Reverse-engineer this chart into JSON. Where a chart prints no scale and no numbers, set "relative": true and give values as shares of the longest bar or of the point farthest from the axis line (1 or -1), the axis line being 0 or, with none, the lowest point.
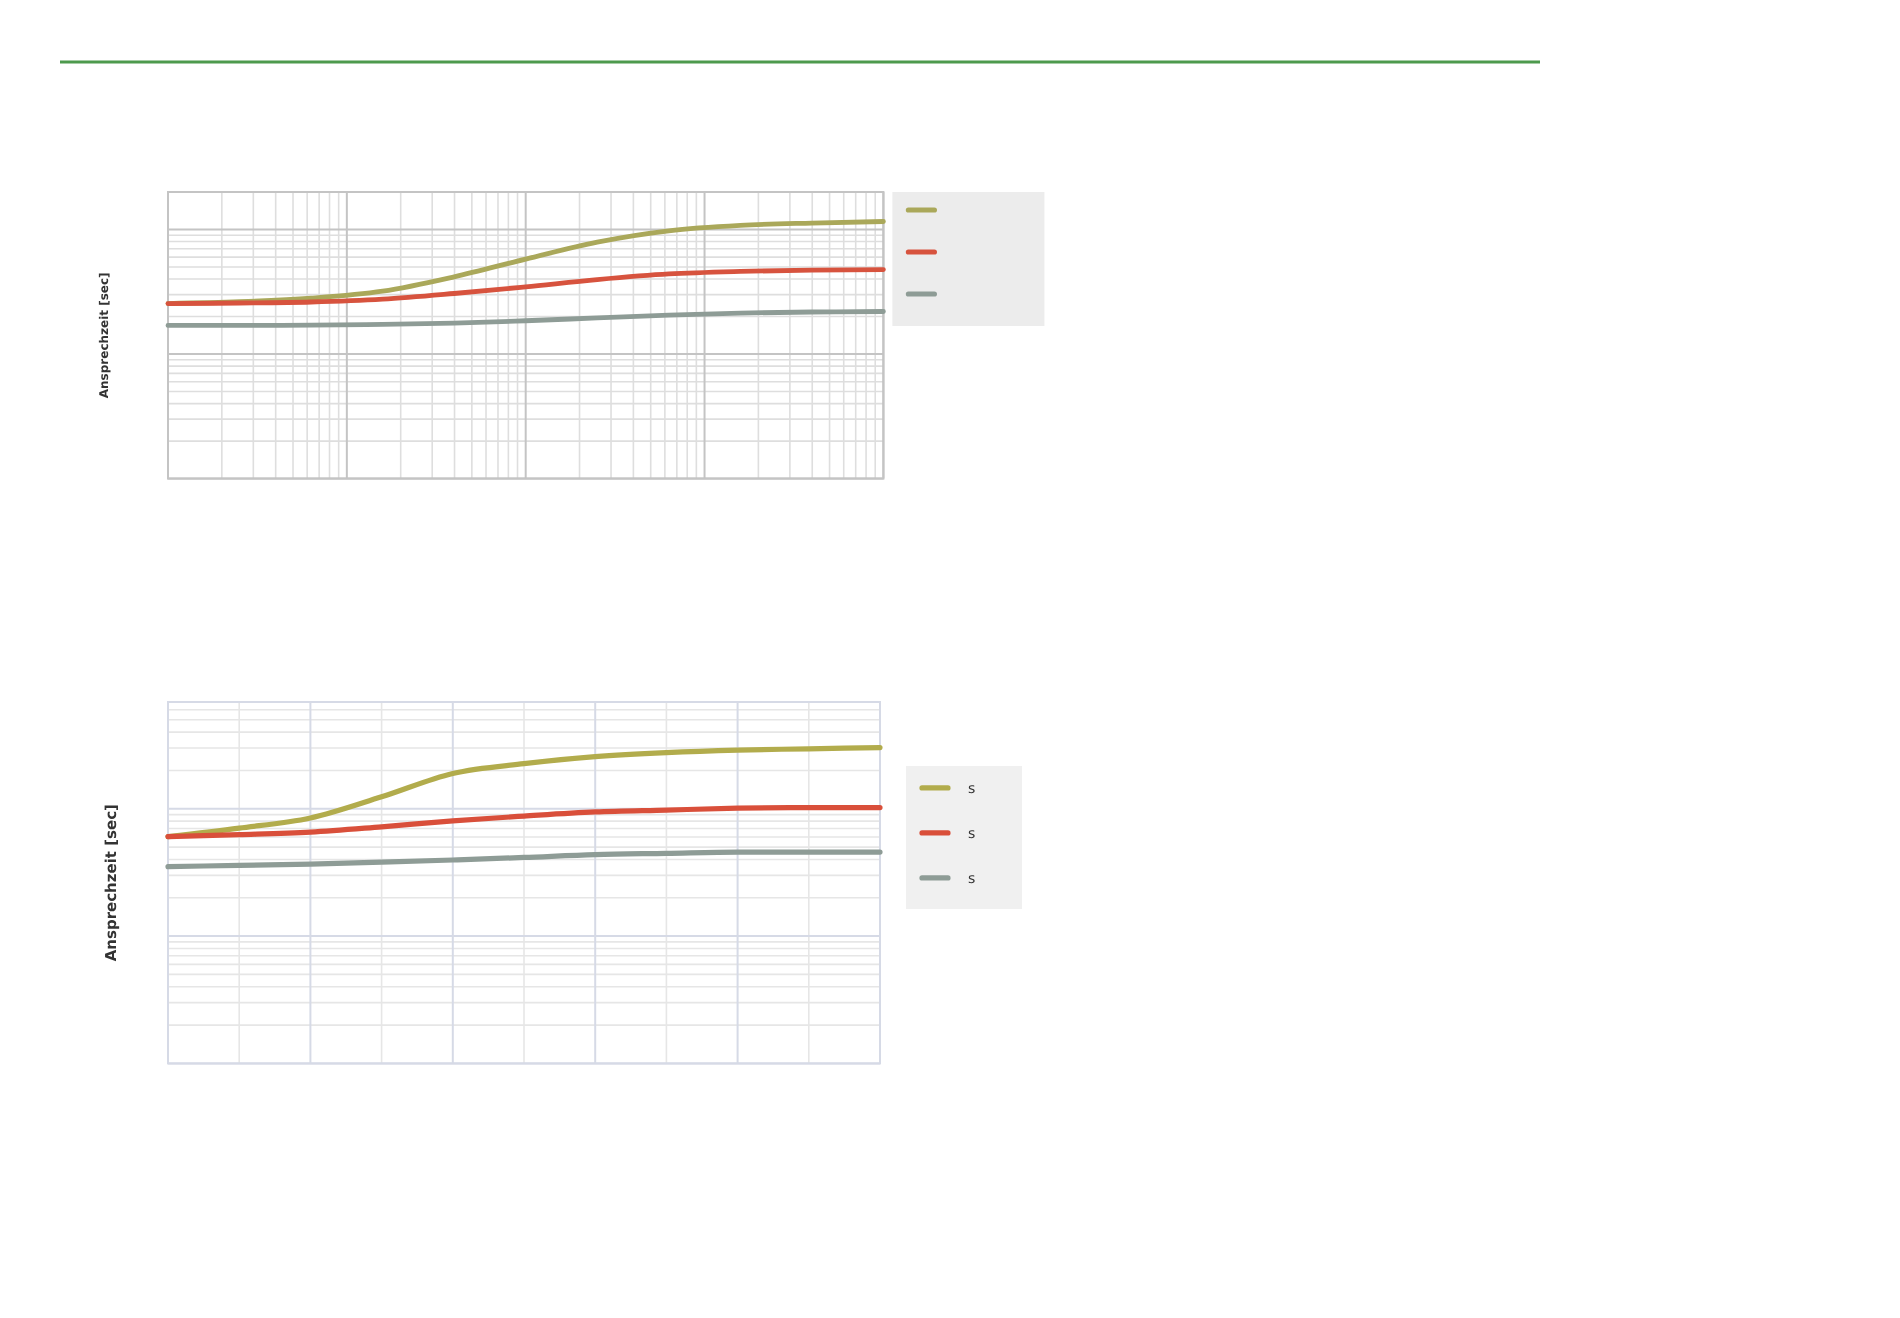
{
  "chart_data": [
    {
      "type": "line",
      "ylabel": "Ansprechzeit [sec]",
      "relative": true,
      "grid": true,
      "legend": "top right",
      "categories": [
        null,
        null,
        null,
        null,
        null,
        null,
        null,
        null,
        null,
        null,
        null
      ],
      "series": [
        {
          "color": "#aaa85a",
          "values": [
            0.681,
            0.688,
            0.702,
            0.729,
            0.785,
            0.854,
            0.92,
            0.964,
            0.985,
            0.994,
            1
          ]
        },
        {
          "color": "#d7533e",
          "values": [
            0.681,
            0.683,
            0.687,
            0.698,
            0.72,
            0.746,
            0.774,
            0.796,
            0.806,
            0.811,
            0.813
          ]
        },
        {
          "color": "#8e9c96",
          "values": [
            0.596,
            0.596,
            0.597,
            0.6,
            0.605,
            0.614,
            0.625,
            0.636,
            0.644,
            0.648,
            0.65
          ]
        }
      ]
    },
    {
      "type": "line",
      "ylabel": "Ansprechzeit [sec]",
      "relative": true,
      "grid": true,
      "legend": "right",
      "categories": [
        null,
        null,
        null,
        null,
        null,
        null,
        null,
        null,
        null,
        null,
        null
      ],
      "series": [
        {
          "name": "s",
          "color": "#b2ac4c",
          "values": [
            0.718,
            0.745,
            0.777,
            0.844,
            0.918,
            0.949,
            0.971,
            0.984,
            0.992,
            0.996,
            1
          ]
        },
        {
          "name": "s",
          "color": "#d94f3a",
          "values": [
            0.718,
            0.724,
            0.732,
            0.749,
            0.768,
            0.783,
            0.796,
            0.802,
            0.808,
            0.81,
            0.81
          ]
        },
        {
          "name": "s",
          "color": "#8e9c96",
          "values": [
            0.623,
            0.627,
            0.631,
            0.637,
            0.644,
            0.652,
            0.661,
            0.665,
            0.669,
            0.669,
            0.669
          ]
        }
      ]
    }
  ]
}
